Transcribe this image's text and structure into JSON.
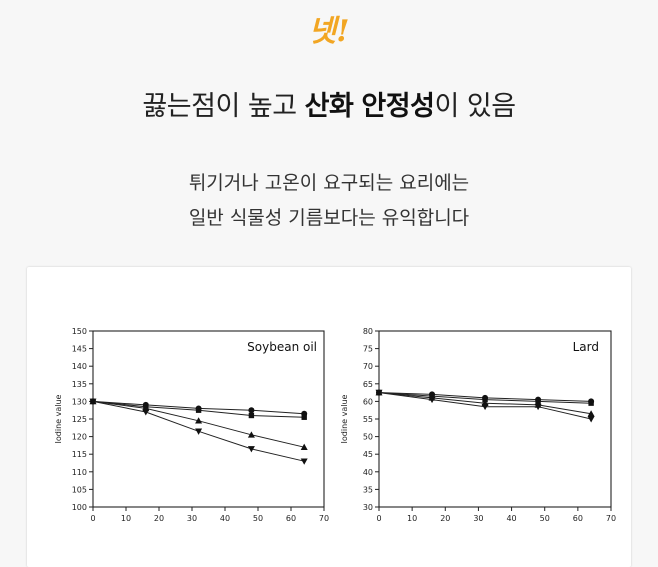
{
  "badge": "넷!",
  "headline": {
    "pre": "끓는점이 높고 ",
    "bold1": "산화",
    "mid": " ",
    "bold2": "안정성",
    "post": "이 있음"
  },
  "description": [
    "튀기거나 고온이 요구되는 요리에는",
    "일반 식물성 기름보다는 유익합니다"
  ],
  "chart_data": [
    {
      "type": "line",
      "title": "Soybean oil",
      "xlabel": "",
      "ylabel": "Iodine value",
      "xlim": [
        0,
        70
      ],
      "ylim": [
        100,
        150
      ],
      "x_ticks": [
        0,
        10,
        20,
        30,
        40,
        50,
        60,
        70
      ],
      "y_ticks": [
        100,
        105,
        110,
        115,
        120,
        125,
        130,
        135,
        140,
        145,
        150
      ],
      "series": [
        {
          "marker": "circle",
          "x": [
            0,
            16,
            32,
            48,
            64
          ],
          "y": [
            130,
            129,
            128,
            127.5,
            126.5
          ]
        },
        {
          "marker": "square",
          "x": [
            0,
            16,
            32,
            48,
            64
          ],
          "y": [
            130,
            128.5,
            127.5,
            126,
            125.5
          ]
        },
        {
          "marker": "triangle-up",
          "x": [
            0,
            16,
            32,
            48,
            64
          ],
          "y": [
            130,
            128,
            124.5,
            120.5,
            117
          ]
        },
        {
          "marker": "triangle-down",
          "x": [
            0,
            16,
            32,
            48,
            64
          ],
          "y": [
            130,
            127,
            121.5,
            116.5,
            113
          ]
        }
      ]
    },
    {
      "type": "line",
      "title": "Lard",
      "xlabel": "",
      "ylabel": "Iodine value",
      "xlim": [
        0,
        70
      ],
      "ylim": [
        30,
        80
      ],
      "x_ticks": [
        0,
        10,
        20,
        30,
        40,
        50,
        60,
        70
      ],
      "y_ticks": [
        30,
        35,
        40,
        45,
        50,
        55,
        60,
        65,
        70,
        75,
        80
      ],
      "series": [
        {
          "marker": "circle",
          "x": [
            0,
            16,
            32,
            48,
            64
          ],
          "y": [
            62.5,
            62,
            61,
            60.5,
            60
          ]
        },
        {
          "marker": "square",
          "x": [
            0,
            16,
            32,
            48,
            64
          ],
          "y": [
            62.5,
            61.5,
            60.5,
            60,
            59.5
          ]
        },
        {
          "marker": "triangle-up",
          "x": [
            0,
            16,
            32,
            48,
            64
          ],
          "y": [
            62.5,
            61,
            59.5,
            59,
            56.5
          ]
        },
        {
          "marker": "triangle-down",
          "x": [
            0,
            16,
            32,
            48,
            64
          ],
          "y": [
            62.5,
            60.5,
            58.5,
            58.5,
            55
          ]
        }
      ]
    }
  ]
}
